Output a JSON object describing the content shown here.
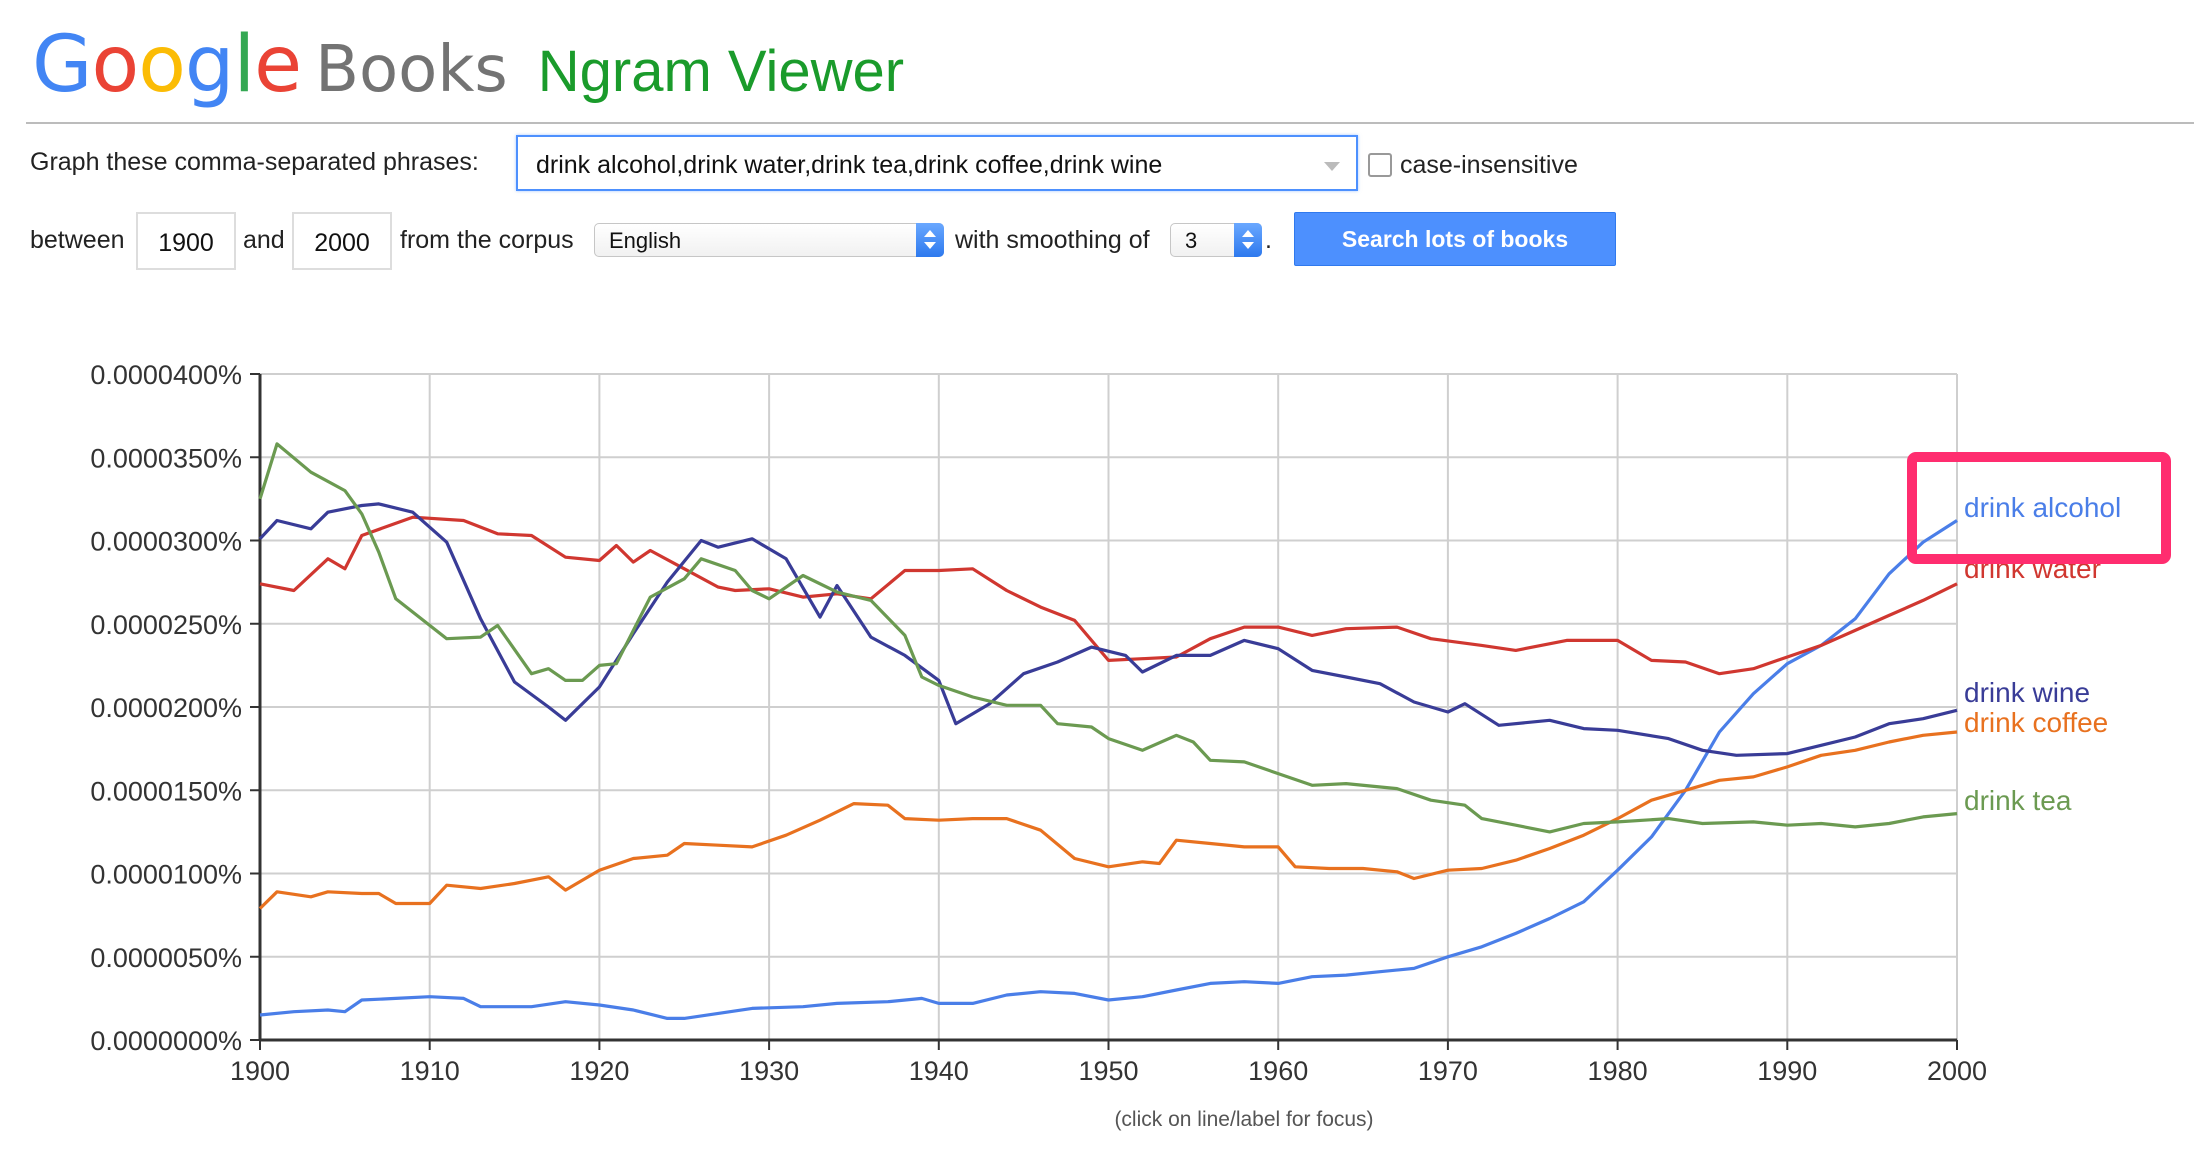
{
  "header": {
    "logo_google": "Google",
    "logo_books": "Books",
    "app_title": "Ngram Viewer",
    "google_colors": [
      "#4285f4",
      "#ea4335",
      "#fbbc05",
      "#4285f4",
      "#34a853",
      "#ea4335"
    ]
  },
  "form": {
    "phrases_label": "Graph these comma-separated phrases:",
    "phrases_value": "drink alcohol,drink water,drink tea,drink coffee,drink wine",
    "case_insensitive_label": "case-insensitive",
    "case_insensitive_checked": false,
    "between_label": "between",
    "year_start": "1900",
    "and_label": "and",
    "year_end": "2000",
    "corpus_label": "from the corpus",
    "corpus_value": "English",
    "smoothing_label": "with smoothing of",
    "smoothing_value": "3",
    "period": ".",
    "search_button": "Search lots of books"
  },
  "footer": {
    "hint": "(click on line/label for focus)"
  },
  "highlight_box_color": "#ff2d6f",
  "chart_data": {
    "type": "line",
    "title": "",
    "xlabel": "",
    "ylabel": "",
    "xlim": [
      1900,
      2000
    ],
    "ylim": [
      0,
      4e-05
    ],
    "x_ticks": [
      "1900",
      "1910",
      "1920",
      "1930",
      "1940",
      "1950",
      "1960",
      "1970",
      "1980",
      "1990",
      "2000"
    ],
    "y_ticks": [
      "0.0000000%",
      "0.0000050%",
      "0.0000100%",
      "0.0000150%",
      "0.0000200%",
      "0.0000250%",
      "0.0000300%",
      "0.0000350%",
      "0.0000400%"
    ],
    "grid": true,
    "legend": "right-end labels",
    "series": [
      {
        "name": "drink alcohol",
        "color": "#4a7ee8",
        "points": [
          [
            1900,
            1.5
          ],
          [
            1902,
            1.7
          ],
          [
            1904,
            1.8
          ],
          [
            1905,
            1.7
          ],
          [
            1906,
            2.4
          ],
          [
            1908,
            2.5
          ],
          [
            1910,
            2.6
          ],
          [
            1912,
            2.5
          ],
          [
            1913,
            2.0
          ],
          [
            1916,
            2.0
          ],
          [
            1918,
            2.3
          ],
          [
            1920,
            2.1
          ],
          [
            1922,
            1.8
          ],
          [
            1924,
            1.3
          ],
          [
            1925,
            1.3
          ],
          [
            1927,
            1.6
          ],
          [
            1929,
            1.9
          ],
          [
            1932,
            2.0
          ],
          [
            1934,
            2.2
          ],
          [
            1937,
            2.3
          ],
          [
            1939,
            2.5
          ],
          [
            1940,
            2.2
          ],
          [
            1942,
            2.2
          ],
          [
            1944,
            2.7
          ],
          [
            1946,
            2.9
          ],
          [
            1948,
            2.8
          ],
          [
            1950,
            2.4
          ],
          [
            1952,
            2.6
          ],
          [
            1954,
            3.0
          ],
          [
            1956,
            3.4
          ],
          [
            1958,
            3.5
          ],
          [
            1960,
            3.4
          ],
          [
            1962,
            3.8
          ],
          [
            1964,
            3.9
          ],
          [
            1966,
            4.1
          ],
          [
            1968,
            4.3
          ],
          [
            1970,
            5.0
          ],
          [
            1972,
            5.6
          ],
          [
            1974,
            6.4
          ],
          [
            1976,
            7.3
          ],
          [
            1978,
            8.3
          ],
          [
            1980,
            10.2
          ],
          [
            1982,
            12.2
          ],
          [
            1984,
            15.0
          ],
          [
            1986,
            18.5
          ],
          [
            1988,
            20.8
          ],
          [
            1990,
            22.6
          ],
          [
            1992,
            23.7
          ],
          [
            1994,
            25.3
          ],
          [
            1996,
            28.0
          ],
          [
            1998,
            29.9
          ],
          [
            2000,
            31.2
          ]
        ]
      },
      {
        "name": "drink water",
        "color": "#d03730",
        "points": [
          [
            1900,
            27.4
          ],
          [
            1902,
            27.0
          ],
          [
            1904,
            28.9
          ],
          [
            1905,
            28.3
          ],
          [
            1906,
            30.3
          ],
          [
            1909,
            31.4
          ],
          [
            1912,
            31.2
          ],
          [
            1914,
            30.4
          ],
          [
            1916,
            30.3
          ],
          [
            1918,
            29.0
          ],
          [
            1920,
            28.8
          ],
          [
            1921,
            29.7
          ],
          [
            1922,
            28.7
          ],
          [
            1923,
            29.4
          ],
          [
            1925,
            28.3
          ],
          [
            1927,
            27.2
          ],
          [
            1928,
            27.0
          ],
          [
            1930,
            27.1
          ],
          [
            1932,
            26.6
          ],
          [
            1934,
            26.8
          ],
          [
            1936,
            26.5
          ],
          [
            1938,
            28.2
          ],
          [
            1940,
            28.2
          ],
          [
            1942,
            28.3
          ],
          [
            1944,
            27.0
          ],
          [
            1946,
            26.0
          ],
          [
            1948,
            25.2
          ],
          [
            1950,
            22.8
          ],
          [
            1952,
            22.9
          ],
          [
            1954,
            23.0
          ],
          [
            1956,
            24.1
          ],
          [
            1958,
            24.8
          ],
          [
            1960,
            24.8
          ],
          [
            1962,
            24.3
          ],
          [
            1964,
            24.7
          ],
          [
            1967,
            24.8
          ],
          [
            1969,
            24.1
          ],
          [
            1972,
            23.7
          ],
          [
            1974,
            23.4
          ],
          [
            1977,
            24.0
          ],
          [
            1980,
            24.0
          ],
          [
            1982,
            22.8
          ],
          [
            1984,
            22.7
          ],
          [
            1986,
            22.0
          ],
          [
            1988,
            22.3
          ],
          [
            1990,
            23.0
          ],
          [
            1992,
            23.7
          ],
          [
            1994,
            24.6
          ],
          [
            1996,
            25.5
          ],
          [
            1998,
            26.4
          ],
          [
            2000,
            27.4
          ]
        ]
      },
      {
        "name": "drink wine",
        "color": "#393c97",
        "points": [
          [
            1900,
            30.1
          ],
          [
            1901,
            31.2
          ],
          [
            1903,
            30.7
          ],
          [
            1904,
            31.7
          ],
          [
            1906,
            32.1
          ],
          [
            1907,
            32.2
          ],
          [
            1909,
            31.7
          ],
          [
            1911,
            29.9
          ],
          [
            1913,
            25.3
          ],
          [
            1915,
            21.5
          ],
          [
            1917,
            20.0
          ],
          [
            1918,
            19.2
          ],
          [
            1920,
            21.2
          ],
          [
            1922,
            24.4
          ],
          [
            1924,
            27.5
          ],
          [
            1926,
            30.0
          ],
          [
            1927,
            29.6
          ],
          [
            1929,
            30.1
          ],
          [
            1931,
            28.9
          ],
          [
            1933,
            25.4
          ],
          [
            1934,
            27.3
          ],
          [
            1936,
            24.2
          ],
          [
            1938,
            23.1
          ],
          [
            1940,
            21.6
          ],
          [
            1941,
            19.0
          ],
          [
            1943,
            20.2
          ],
          [
            1945,
            22.0
          ],
          [
            1947,
            22.7
          ],
          [
            1949,
            23.6
          ],
          [
            1951,
            23.1
          ],
          [
            1952,
            22.1
          ],
          [
            1954,
            23.1
          ],
          [
            1956,
            23.1
          ],
          [
            1958,
            24.0
          ],
          [
            1960,
            23.5
          ],
          [
            1962,
            22.2
          ],
          [
            1964,
            21.8
          ],
          [
            1966,
            21.4
          ],
          [
            1968,
            20.3
          ],
          [
            1970,
            19.7
          ],
          [
            1971,
            20.2
          ],
          [
            1973,
            18.9
          ],
          [
            1976,
            19.2
          ],
          [
            1978,
            18.7
          ],
          [
            1980,
            18.6
          ],
          [
            1983,
            18.1
          ],
          [
            1985,
            17.4
          ],
          [
            1987,
            17.1
          ],
          [
            1990,
            17.2
          ],
          [
            1992,
            17.7
          ],
          [
            1994,
            18.2
          ],
          [
            1996,
            19.0
          ],
          [
            1998,
            19.3
          ],
          [
            2000,
            19.8
          ]
        ]
      },
      {
        "name": "drink coffee",
        "color": "#e8711f",
        "points": [
          [
            1900,
            7.9
          ],
          [
            1901,
            8.9
          ],
          [
            1903,
            8.6
          ],
          [
            1904,
            8.9
          ],
          [
            1906,
            8.8
          ],
          [
            1907,
            8.8
          ],
          [
            1908,
            8.2
          ],
          [
            1910,
            8.2
          ],
          [
            1911,
            9.3
          ],
          [
            1913,
            9.1
          ],
          [
            1915,
            9.4
          ],
          [
            1917,
            9.8
          ],
          [
            1918,
            9.0
          ],
          [
            1920,
            10.2
          ],
          [
            1922,
            10.9
          ],
          [
            1924,
            11.1
          ],
          [
            1925,
            11.8
          ],
          [
            1927,
            11.7
          ],
          [
            1929,
            11.6
          ],
          [
            1931,
            12.3
          ],
          [
            1933,
            13.2
          ],
          [
            1935,
            14.2
          ],
          [
            1937,
            14.1
          ],
          [
            1938,
            13.3
          ],
          [
            1940,
            13.2
          ],
          [
            1942,
            13.3
          ],
          [
            1944,
            13.3
          ],
          [
            1946,
            12.6
          ],
          [
            1948,
            10.9
          ],
          [
            1950,
            10.4
          ],
          [
            1952,
            10.7
          ],
          [
            1953,
            10.6
          ],
          [
            1954,
            12.0
          ],
          [
            1956,
            11.8
          ],
          [
            1958,
            11.6
          ],
          [
            1960,
            11.6
          ],
          [
            1961,
            10.4
          ],
          [
            1963,
            10.3
          ],
          [
            1965,
            10.3
          ],
          [
            1967,
            10.1
          ],
          [
            1968,
            9.7
          ],
          [
            1970,
            10.2
          ],
          [
            1972,
            10.3
          ],
          [
            1974,
            10.8
          ],
          [
            1976,
            11.5
          ],
          [
            1978,
            12.3
          ],
          [
            1980,
            13.3
          ],
          [
            1982,
            14.4
          ],
          [
            1984,
            15.0
          ],
          [
            1986,
            15.6
          ],
          [
            1988,
            15.8
          ],
          [
            1990,
            16.4
          ],
          [
            1992,
            17.1
          ],
          [
            1994,
            17.4
          ],
          [
            1996,
            17.9
          ],
          [
            1998,
            18.3
          ],
          [
            2000,
            18.5
          ]
        ]
      },
      {
        "name": "drink tea",
        "color": "#6b9a51",
        "points": [
          [
            1900,
            32.5
          ],
          [
            1901,
            35.8
          ],
          [
            1903,
            34.1
          ],
          [
            1905,
            33.0
          ],
          [
            1906,
            31.6
          ],
          [
            1907,
            29.3
          ],
          [
            1908,
            26.5
          ],
          [
            1910,
            24.9
          ],
          [
            1911,
            24.1
          ],
          [
            1913,
            24.2
          ],
          [
            1914,
            24.9
          ],
          [
            1916,
            22.0
          ],
          [
            1917,
            22.3
          ],
          [
            1918,
            21.6
          ],
          [
            1919,
            21.6
          ],
          [
            1920,
            22.5
          ],
          [
            1921,
            22.6
          ],
          [
            1923,
            26.6
          ],
          [
            1925,
            27.7
          ],
          [
            1926,
            28.9
          ],
          [
            1928,
            28.2
          ],
          [
            1929,
            27.0
          ],
          [
            1930,
            26.5
          ],
          [
            1932,
            27.9
          ],
          [
            1934,
            26.9
          ],
          [
            1936,
            26.4
          ],
          [
            1938,
            24.3
          ],
          [
            1939,
            21.8
          ],
          [
            1940,
            21.3
          ],
          [
            1942,
            20.6
          ],
          [
            1944,
            20.1
          ],
          [
            1946,
            20.1
          ],
          [
            1947,
            19.0
          ],
          [
            1949,
            18.8
          ],
          [
            1950,
            18.1
          ],
          [
            1952,
            17.4
          ],
          [
            1954,
            18.3
          ],
          [
            1955,
            17.9
          ],
          [
            1956,
            16.8
          ],
          [
            1958,
            16.7
          ],
          [
            1960,
            16.0
          ],
          [
            1962,
            15.3
          ],
          [
            1964,
            15.4
          ],
          [
            1967,
            15.1
          ],
          [
            1969,
            14.4
          ],
          [
            1971,
            14.1
          ],
          [
            1972,
            13.3
          ],
          [
            1974,
            12.9
          ],
          [
            1976,
            12.5
          ],
          [
            1978,
            13.0
          ],
          [
            1980,
            13.1
          ],
          [
            1983,
            13.3
          ],
          [
            1985,
            13.0
          ],
          [
            1988,
            13.1
          ],
          [
            1990,
            12.9
          ],
          [
            1992,
            13.0
          ],
          [
            1994,
            12.8
          ],
          [
            1996,
            13.0
          ],
          [
            1998,
            13.4
          ],
          [
            2000,
            13.6
          ]
        ]
      }
    ]
  }
}
